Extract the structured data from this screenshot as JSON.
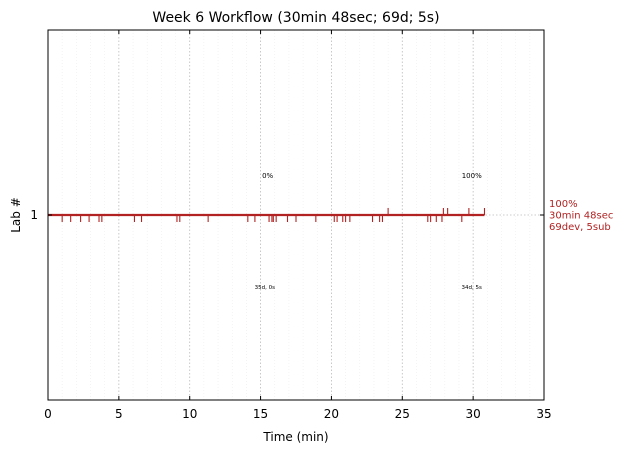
{
  "chart_data": {
    "type": "timeline",
    "title": "Week 6 Workflow (30min 48sec; 69d; 5s)",
    "xlabel": "Time (min)",
    "ylabel": "Lab #",
    "xlim": [
      0,
      35
    ],
    "x_ticks": [
      "0",
      "5",
      "10",
      "15",
      "20",
      "25",
      "30",
      "35"
    ],
    "y_ticks": [
      "1"
    ],
    "grid": "vertical dotted",
    "colors": {
      "series": "#b22222",
      "grid": "#bbbbbb"
    },
    "series": [
      {
        "lab": 1,
        "end_min": 30.8,
        "down_ticks_min": [
          1.0,
          1.6,
          2.3,
          2.9,
          3.6,
          3.8,
          6.1,
          6.6,
          9.1,
          9.3,
          11.3,
          14.1,
          14.6,
          15.6,
          15.8,
          15.9,
          16.1,
          16.9,
          17.5,
          18.9,
          20.2,
          20.4,
          20.8,
          21.0,
          21.3,
          22.9,
          23.4,
          23.6,
          26.8,
          27.0,
          27.4,
          27.8,
          29.2
        ],
        "up_ticks_min": [
          24.0,
          27.9,
          28.2,
          29.7,
          30.8
        ],
        "side_labels": [
          "100%",
          "30min 48sec",
          "69dev, 5sub"
        ]
      }
    ],
    "annotations": [
      {
        "text": "0%",
        "x": 15.5,
        "level": "above"
      },
      {
        "text": "100%",
        "x": 29.9,
        "level": "above"
      },
      {
        "text": "35d, 0s",
        "x": 15.3,
        "level": "below"
      },
      {
        "text": "34d, 5s",
        "x": 29.9,
        "level": "below"
      }
    ]
  }
}
